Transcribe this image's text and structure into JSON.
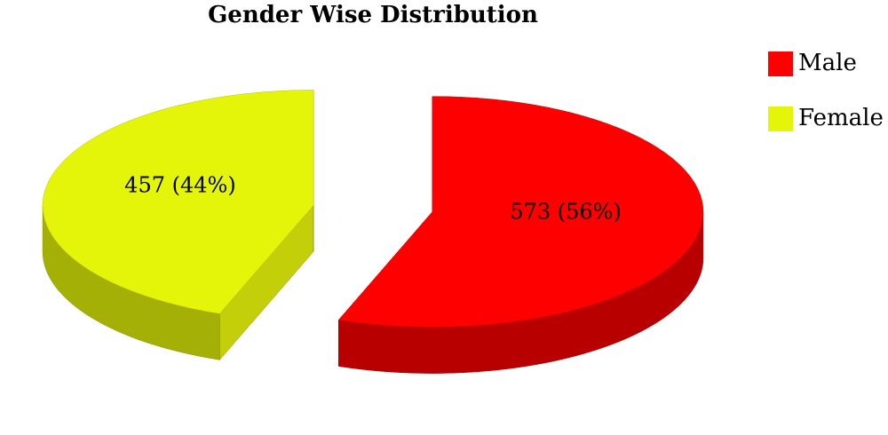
{
  "chart_data": {
    "type": "pie",
    "title": "Gender Wise Distribution",
    "categories": [
      "Male",
      "Female"
    ],
    "values": [
      573,
      457
    ],
    "value_labels": [
      "573 (56%)",
      "457 (44%)"
    ],
    "colors": [
      "#ff0000",
      "#e5f50a"
    ],
    "legend": "top-right"
  }
}
